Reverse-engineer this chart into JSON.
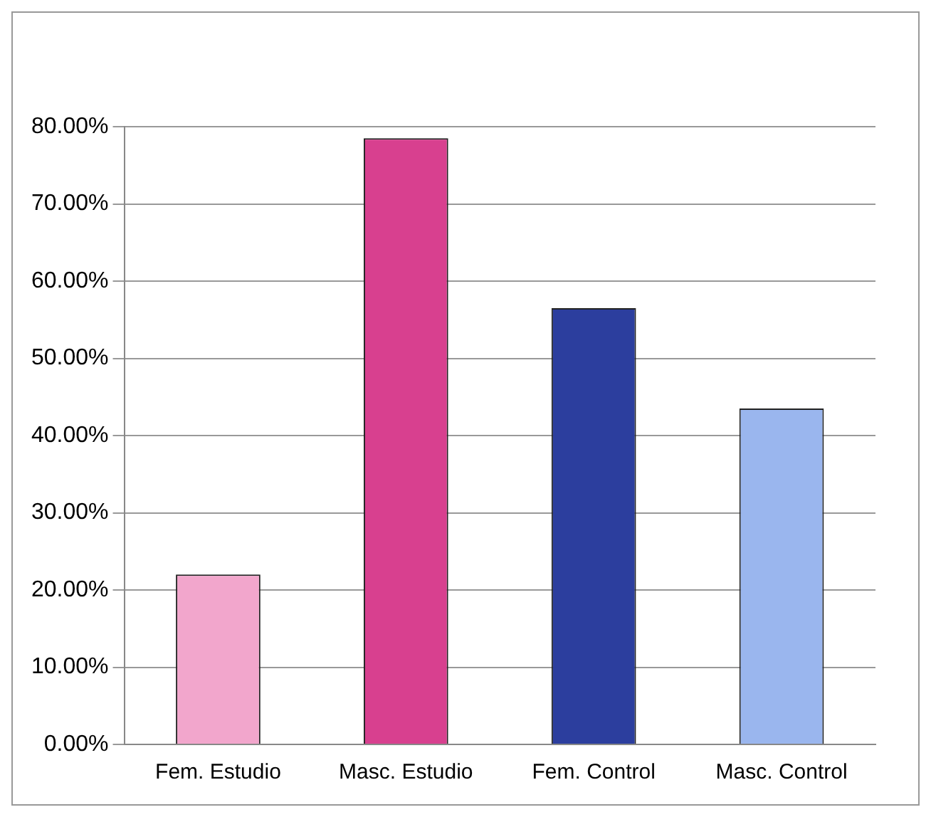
{
  "chart_data": {
    "type": "bar",
    "categories": [
      "Fem. Estudio",
      "Masc. Estudio",
      "Fem. Control",
      "Masc. Control"
    ],
    "values": [
      22,
      78.5,
      56.5,
      43.5
    ],
    "colors": [
      "#f2a6cc",
      "#d8408f",
      "#2c3e9e",
      "#9ab6ee"
    ],
    "ylim": [
      0,
      80
    ],
    "yticks": [
      {
        "value": 0,
        "label": "0.00%"
      },
      {
        "value": 10,
        "label": "10.00%"
      },
      {
        "value": 20,
        "label": "20.00%"
      },
      {
        "value": 30,
        "label": "30.00%"
      },
      {
        "value": 40,
        "label": "40.00%"
      },
      {
        "value": 50,
        "label": "50.00%"
      },
      {
        "value": 60,
        "label": "60.00%"
      },
      {
        "value": 70,
        "label": "70.00%"
      },
      {
        "value": 80,
        "label": "80.00%"
      }
    ],
    "grid": "y"
  }
}
